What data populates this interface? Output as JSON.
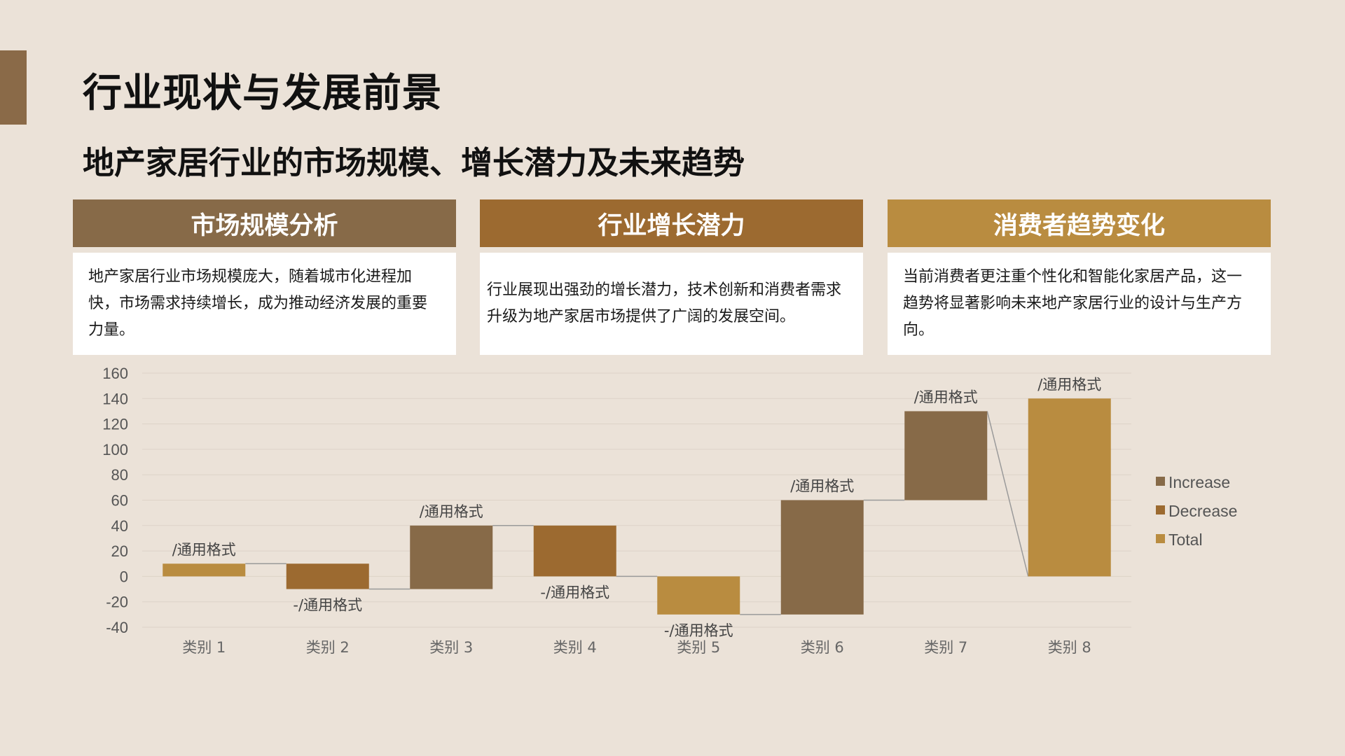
{
  "page": {
    "title": "行业现状与发展前景",
    "subtitle": "地产家居行业的市场规模、增长潜力及未来趋势"
  },
  "cards": [
    {
      "header": "市场规模分析",
      "body": "地产家居行业市场规模庞大，随着城市化进程加快，市场需求持续增长，成为推动经济发展的重要力量。"
    },
    {
      "header": "行业增长潜力",
      "body": "行业展现出强劲的增长潜力，技术创新和消费者需求升级为地产家居市场提供了广阔的发展空间。"
    },
    {
      "header": "消费者趋势变化",
      "body": "当前消费者更注重个性化和智能化家居产品，这一趋势将显著影响未来地产家居行业的设计与生产方向。"
    }
  ],
  "colors": {
    "increase": "#876a48",
    "decrease": "#9c6a30",
    "total": "#b98c40",
    "connector": "#9a9a9a",
    "grid": "#ddd3c7"
  },
  "chart_data": {
    "type": "bar",
    "subtype": "waterfall",
    "categories": [
      "类别 1",
      "类别 2",
      "类别 3",
      "类别 4",
      "类别 5",
      "类别 6",
      "类别 7",
      "类别 8"
    ],
    "bars": [
      {
        "start": 0,
        "end": 10,
        "kind": "total",
        "label": "/通用格式"
      },
      {
        "start": 10,
        "end": -10,
        "kind": "decrease",
        "label": "-/通用格式"
      },
      {
        "start": -10,
        "end": 40,
        "kind": "increase",
        "label": "/通用格式"
      },
      {
        "start": 40,
        "end": 0,
        "kind": "decrease",
        "label": "-/通用格式"
      },
      {
        "start": 0,
        "end": -30,
        "kind": "total",
        "label": "-/通用格式"
      },
      {
        "start": -30,
        "end": 60,
        "kind": "increase",
        "label": "/通用格式"
      },
      {
        "start": 60,
        "end": 130,
        "kind": "increase",
        "label": "/通用格式"
      },
      {
        "start": 0,
        "end": 140,
        "kind": "total",
        "label": "/通用格式"
      }
    ],
    "ylim": [
      -40,
      160
    ],
    "yticks": [
      160,
      140,
      120,
      100,
      80,
      60,
      40,
      20,
      0,
      -20,
      -40
    ],
    "grid": true,
    "legend": {
      "position": "right",
      "entries": [
        {
          "name": "Increase",
          "kind": "increase"
        },
        {
          "name": "Decrease",
          "kind": "decrease"
        },
        {
          "name": "Total",
          "kind": "total"
        }
      ]
    }
  }
}
